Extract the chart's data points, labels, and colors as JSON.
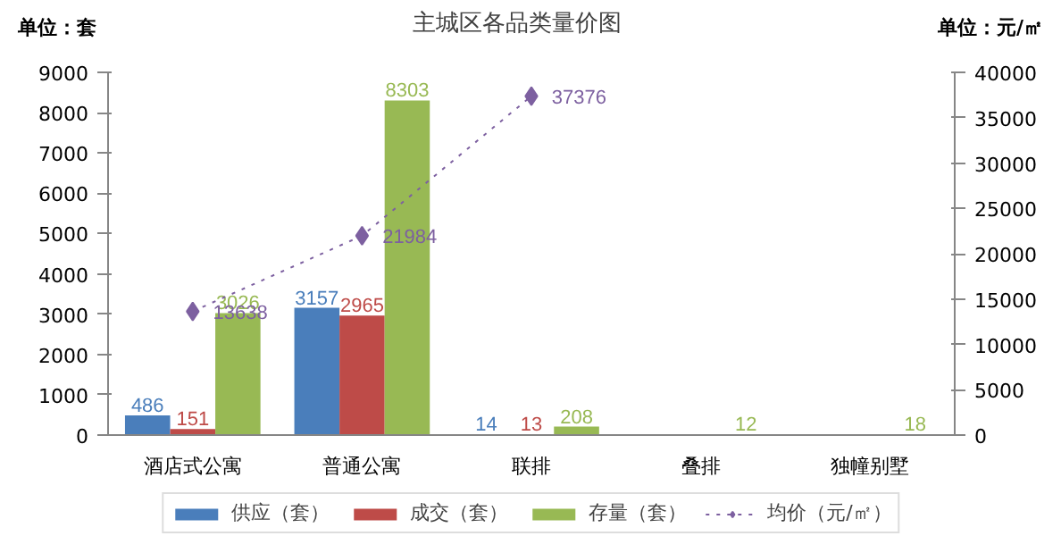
{
  "chart_data": {
    "type": "bar",
    "title": "主城区各品类量价图",
    "ylabel": "单位：套",
    "y2label": "单位：元/㎡",
    "categories": [
      "酒店式公寓",
      "普通公寓",
      "联排",
      "叠排",
      "独幢别墅"
    ],
    "series": [
      {
        "name": "供应（套）",
        "color": "#4a7ebb",
        "values": [
          486,
          3157,
          14,
          null,
          null
        ]
      },
      {
        "name": "成交（套）",
        "color": "#be4b48",
        "values": [
          151,
          2965,
          13,
          null,
          null
        ]
      },
      {
        "name": "存量（套）",
        "color": "#98b954",
        "values": [
          3026,
          8303,
          208,
          12,
          18
        ]
      },
      {
        "name": "均价（元/㎡）",
        "type": "line",
        "axis": "y2",
        "color": "#7d60a0",
        "values": [
          13638,
          21984,
          37376,
          null,
          null
        ],
        "marker": "diamond",
        "line_style": "dotted"
      }
    ],
    "ylim": [
      0,
      9000
    ],
    "yticks": [
      0,
      1000,
      2000,
      3000,
      4000,
      5000,
      6000,
      7000,
      8000,
      9000
    ],
    "y2lim": [
      0,
      40000
    ],
    "y2ticks": [
      0,
      5000,
      10000,
      15000,
      20000,
      25000,
      30000,
      35000,
      40000
    ],
    "data_labels": true,
    "grid": false,
    "legend": "bottom"
  }
}
